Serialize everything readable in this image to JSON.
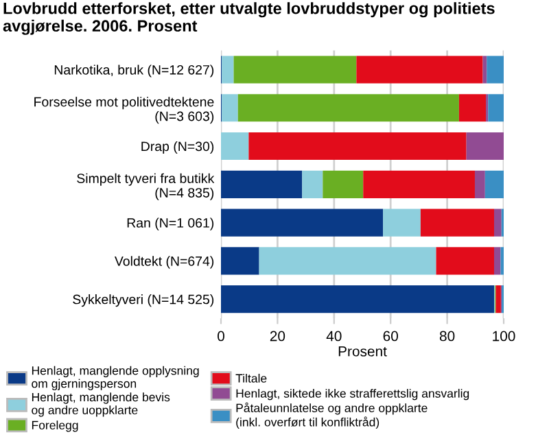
{
  "chart_data": {
    "type": "bar",
    "orientation": "horizontal",
    "stacked": true,
    "title": "Lovbrudd etterforsket, etter utvalgte lovbruddstyper og politiets avgjørelse. 2006. Prosent",
    "xlabel": "Prosent",
    "categories": [
      "Narkotika, bruk (N=12 627)",
      "Forseelse mot politivedtektene\n(N=3 603)",
      "Drap (N=30)",
      "Simpelt tyveri fra butikk\n(N=4 835)",
      "Ran (N=1 061)",
      "Voldtekt (N=674)",
      "Sykkeltyveri (N=14 525)"
    ],
    "series": [
      {
        "name": "Henlagt, manglende opplysning\nom gjerningsperson",
        "color": "#0a3a87",
        "values": [
          0.3,
          0.3,
          0,
          28.7,
          57.3,
          13.5,
          96.6
        ]
      },
      {
        "name": "Henlagt, manglende bevis\nog andre uoppklarte",
        "color": "#8ecfdd",
        "values": [
          4.2,
          5.7,
          9.8,
          7.3,
          13.3,
          62.6,
          0.3
        ]
      },
      {
        "name": "Forelegg",
        "color": "#6aaf23",
        "values": [
          43.4,
          78.2,
          0,
          14.3,
          0,
          0,
          0.3
        ]
      },
      {
        "name": "Tiltale",
        "color": "#e20c1b",
        "values": [
          44.7,
          9.5,
          77.0,
          39.5,
          26.0,
          20.5,
          1.8
        ]
      },
      {
        "name": "Henlagt, siktede ikke strafferettslig ansvarlig",
        "color": "#914b93",
        "values": [
          1.4,
          0.8,
          13.2,
          3.6,
          2.6,
          2.3,
          0.3
        ]
      },
      {
        "name": "Påtaleunnlatelse og andre oppklarte\n(inkl. overført til konfliktråd)",
        "color": "#3a8fc4",
        "values": [
          6.0,
          5.5,
          0,
          6.6,
          0.8,
          1.1,
          0.7
        ]
      }
    ],
    "xlim": [
      0,
      100
    ],
    "xticks": [
      0,
      20,
      40,
      60,
      80,
      100
    ],
    "grid": "x",
    "legend": "bottom"
  }
}
